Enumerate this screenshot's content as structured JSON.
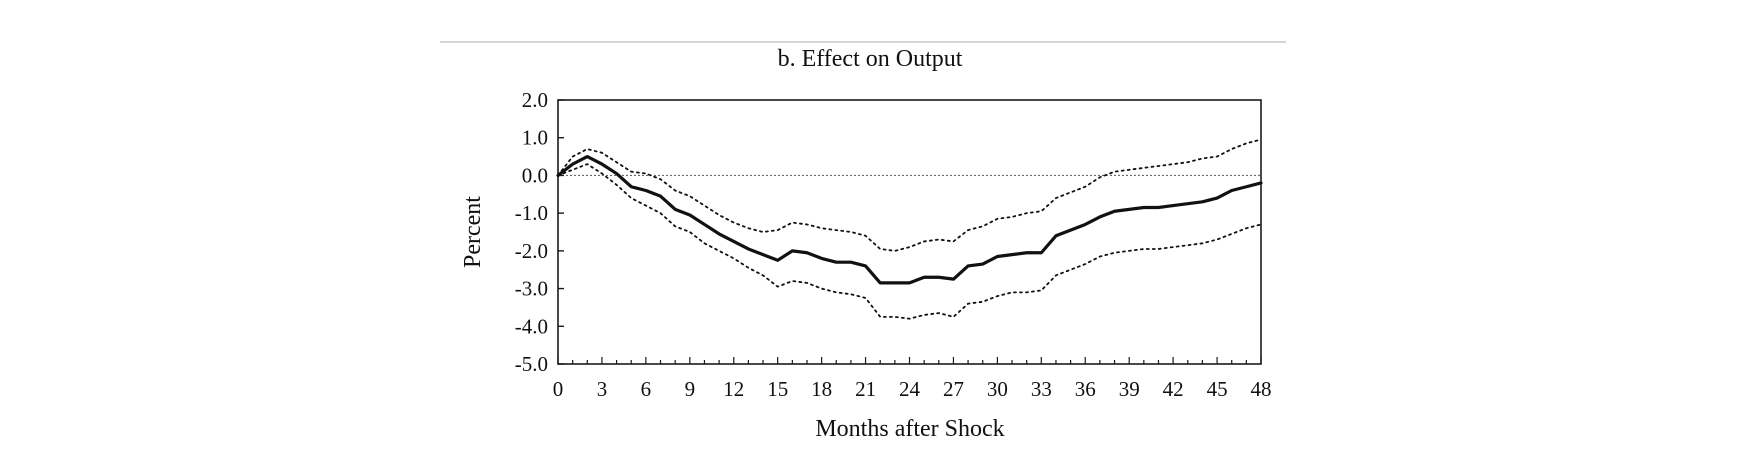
{
  "chart_data": {
    "type": "line",
    "title": "b.  Effect on Output",
    "xlabel": "Months after Shock",
    "ylabel": "Percent",
    "xlim": [
      0,
      48
    ],
    "ylim": [
      -5.0,
      2.0
    ],
    "x_ticks": [
      "0",
      "3",
      "6",
      "9",
      "12",
      "15",
      "18",
      "21",
      "24",
      "27",
      "30",
      "33",
      "36",
      "39",
      "42",
      "45",
      "48"
    ],
    "y_ticks": [
      "2.0",
      "1.0",
      "0.0",
      "-1.0",
      "-2.0",
      "-3.0",
      "-4.0",
      "-5.0"
    ],
    "grid": false,
    "reference_line_y": 0.0,
    "x": [
      0,
      1,
      2,
      3,
      4,
      5,
      6,
      7,
      8,
      9,
      10,
      11,
      12,
      13,
      14,
      15,
      16,
      17,
      18,
      19,
      20,
      21,
      22,
      23,
      24,
      25,
      26,
      27,
      28,
      29,
      30,
      31,
      32,
      33,
      34,
      35,
      36,
      37,
      38,
      39,
      40,
      41,
      42,
      43,
      44,
      45,
      46,
      47,
      48
    ],
    "series": [
      {
        "style": "solid",
        "values": [
          0.0,
          0.3,
          0.5,
          0.3,
          0.05,
          -0.3,
          -0.4,
          -0.55,
          -0.9,
          -1.05,
          -1.3,
          -1.55,
          -1.75,
          -1.95,
          -2.1,
          -2.25,
          -2.0,
          -2.05,
          -2.2,
          -2.3,
          -2.3,
          -2.4,
          -2.85,
          -2.85,
          -2.85,
          -2.7,
          -2.7,
          -2.75,
          -2.4,
          -2.35,
          -2.15,
          -2.1,
          -2.05,
          -2.05,
          -1.6,
          -1.45,
          -1.3,
          -1.1,
          -0.95,
          -0.9,
          -0.85,
          -0.85,
          -0.8,
          -0.75,
          -0.7,
          -0.6,
          -0.4,
          -0.3,
          -0.2
        ]
      },
      {
        "style": "dotted",
        "values": [
          0.0,
          0.5,
          0.7,
          0.6,
          0.35,
          0.1,
          0.05,
          -0.1,
          -0.4,
          -0.55,
          -0.8,
          -1.05,
          -1.25,
          -1.4,
          -1.5,
          -1.45,
          -1.25,
          -1.3,
          -1.4,
          -1.45,
          -1.5,
          -1.6,
          -1.95,
          -2.0,
          -1.9,
          -1.75,
          -1.7,
          -1.75,
          -1.45,
          -1.35,
          -1.15,
          -1.1,
          -1.0,
          -0.95,
          -0.6,
          -0.45,
          -0.3,
          -0.05,
          0.1,
          0.15,
          0.2,
          0.25,
          0.3,
          0.35,
          0.45,
          0.5,
          0.7,
          0.85,
          0.95
        ]
      },
      {
        "style": "dotted",
        "values": [
          0.0,
          0.15,
          0.3,
          0.05,
          -0.25,
          -0.6,
          -0.8,
          -1.0,
          -1.35,
          -1.5,
          -1.8,
          -2.0,
          -2.2,
          -2.45,
          -2.65,
          -2.95,
          -2.8,
          -2.85,
          -3.0,
          -3.1,
          -3.15,
          -3.25,
          -3.75,
          -3.75,
          -3.8,
          -3.7,
          -3.65,
          -3.75,
          -3.4,
          -3.35,
          -3.2,
          -3.1,
          -3.1,
          -3.05,
          -2.65,
          -2.5,
          -2.35,
          -2.15,
          -2.05,
          -2.0,
          -1.95,
          -1.95,
          -1.9,
          -1.85,
          -1.8,
          -1.7,
          -1.55,
          -1.4,
          -1.3
        ]
      }
    ]
  }
}
